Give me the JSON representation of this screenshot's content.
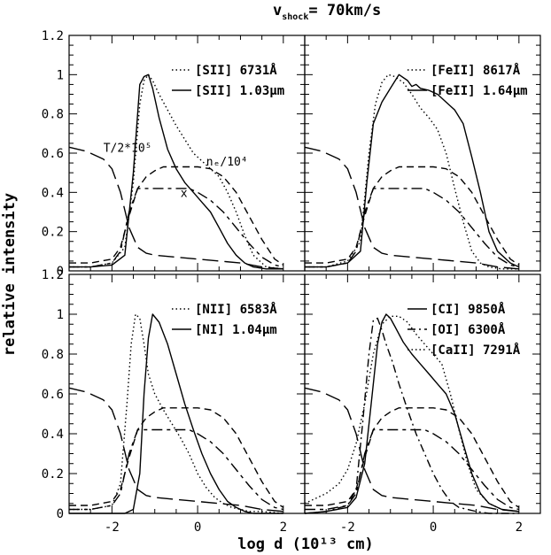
{
  "figure": {
    "title_main": "v",
    "title_sub": "shock",
    "title_rest": "= 70km/s",
    "xlabel": "log d (10¹³ cm)",
    "ylabel": "relative intensity",
    "xlim": [
      -3.0,
      2.5
    ],
    "ylim": [
      0.0,
      1.2
    ],
    "x_ticks": [
      -2,
      0,
      2
    ],
    "y_ticks": [
      0,
      0.2,
      0.4,
      0.6,
      0.8,
      1,
      1.2
    ]
  },
  "chart_data": [
    {
      "type": "line",
      "panel": "top-left",
      "xlim": [
        -3.0,
        2.5
      ],
      "ylim": [
        0.0,
        1.2
      ],
      "legend": [
        {
          "style": "dotted",
          "label": "[SII] 6731Å"
        },
        {
          "style": "solid",
          "label": "[SII] 1.03μm"
        }
      ],
      "annotations": [
        {
          "text": "T/2*10⁵",
          "x": -2.2,
          "y": 0.63
        },
        {
          "text": "nₑ/10⁴",
          "x": 0.2,
          "y": 0.56
        },
        {
          "text": "x",
          "x": -0.4,
          "y": 0.4
        }
      ],
      "series": [
        {
          "style": "dotted",
          "x": [
            -3.0,
            -2.5,
            -2.0,
            -1.7,
            -1.5,
            -1.35,
            -1.25,
            -1.15,
            -1.05,
            -0.9,
            -0.7,
            -0.5,
            -0.3,
            -0.1,
            0.1,
            0.3,
            0.5,
            0.7,
            0.9,
            1.1,
            1.3,
            1.6,
            2.0
          ],
          "y": [
            0.02,
            0.02,
            0.04,
            0.12,
            0.45,
            0.85,
            0.97,
            1.0,
            0.97,
            0.9,
            0.82,
            0.74,
            0.67,
            0.6,
            0.56,
            0.52,
            0.48,
            0.4,
            0.3,
            0.18,
            0.08,
            0.02,
            0.01
          ]
        },
        {
          "style": "solid",
          "x": [
            -3.0,
            -2.5,
            -2.0,
            -1.7,
            -1.5,
            -1.35,
            -1.25,
            -1.15,
            -1.05,
            -0.9,
            -0.7,
            -0.5,
            -0.3,
            -0.1,
            0.1,
            0.3,
            0.5,
            0.7,
            0.9,
            1.1,
            1.3,
            1.6,
            2.0
          ],
          "y": [
            0.02,
            0.02,
            0.03,
            0.08,
            0.5,
            0.95,
            0.99,
            1.0,
            0.93,
            0.78,
            0.62,
            0.52,
            0.45,
            0.4,
            0.35,
            0.3,
            0.22,
            0.14,
            0.08,
            0.04,
            0.02,
            0.01,
            0.01
          ]
        },
        {
          "style": "long-dash",
          "x": [
            -3.0,
            -2.6,
            -2.2,
            -2.0,
            -1.8,
            -1.6,
            -1.4,
            -1.2,
            -1.0,
            -0.5,
            0.0,
            0.5,
            1.0,
            1.5,
            2.0
          ],
          "y": [
            0.63,
            0.61,
            0.57,
            0.52,
            0.4,
            0.22,
            0.12,
            0.09,
            0.08,
            0.07,
            0.06,
            0.05,
            0.04,
            0.02,
            0.01
          ]
        },
        {
          "style": "short-dash",
          "x": [
            -3.0,
            -2.5,
            -2.0,
            -1.8,
            -1.6,
            -1.4,
            -1.2,
            -1.0,
            -0.8,
            -0.5,
            0.0,
            0.3,
            0.6,
            0.9,
            1.2,
            1.5,
            1.8,
            2.0
          ],
          "y": [
            0.04,
            0.04,
            0.06,
            0.12,
            0.28,
            0.42,
            0.48,
            0.51,
            0.53,
            0.53,
            0.53,
            0.52,
            0.48,
            0.4,
            0.28,
            0.16,
            0.06,
            0.03
          ]
        },
        {
          "style": "dash-short",
          "x": [
            -3.0,
            -2.5,
            -2.0,
            -1.8,
            -1.6,
            -1.4,
            -1.2,
            -1.0,
            -0.5,
            -0.2,
            0.0,
            0.3,
            0.6,
            0.9,
            1.2,
            1.5,
            1.8,
            2.0
          ],
          "y": [
            0.02,
            0.02,
            0.04,
            0.1,
            0.3,
            0.42,
            0.42,
            0.42,
            0.42,
            0.42,
            0.4,
            0.36,
            0.3,
            0.22,
            0.14,
            0.07,
            0.03,
            0.02
          ]
        }
      ]
    },
    {
      "type": "line",
      "panel": "top-right",
      "xlim": [
        -3.0,
        2.5
      ],
      "ylim": [
        0.0,
        1.2
      ],
      "legend": [
        {
          "style": "dotted",
          "label": "[FeII] 8617Å"
        },
        {
          "style": "solid",
          "label": "[FeII] 1.64μm"
        }
      ],
      "series": [
        {
          "style": "dotted",
          "x": [
            -3.0,
            -2.5,
            -2.0,
            -1.7,
            -1.5,
            -1.35,
            -1.2,
            -1.05,
            -0.9,
            -0.7,
            -0.5,
            -0.3,
            -0.1,
            0.1,
            0.3,
            0.5,
            0.7,
            0.9,
            1.1,
            1.3,
            1.6,
            2.0
          ],
          "y": [
            0.02,
            0.02,
            0.05,
            0.15,
            0.6,
            0.85,
            0.96,
            1.0,
            0.99,
            0.96,
            0.9,
            0.83,
            0.78,
            0.72,
            0.6,
            0.42,
            0.25,
            0.1,
            0.04,
            0.02,
            0.01,
            0.01
          ]
        },
        {
          "style": "solid",
          "x": [
            -3.0,
            -2.5,
            -2.0,
            -1.7,
            -1.55,
            -1.4,
            -1.2,
            -1.0,
            -0.8,
            -0.6,
            -0.5,
            -0.4,
            -0.3,
            -0.1,
            0.1,
            0.3,
            0.5,
            0.7,
            0.9,
            1.1,
            1.3,
            1.5,
            1.8,
            2.0
          ],
          "y": [
            0.02,
            0.02,
            0.04,
            0.1,
            0.45,
            0.75,
            0.86,
            0.93,
            1.0,
            0.97,
            0.94,
            0.95,
            0.93,
            0.92,
            0.9,
            0.86,
            0.82,
            0.75,
            0.58,
            0.4,
            0.2,
            0.1,
            0.04,
            0.02
          ]
        },
        {
          "style": "long-dash",
          "x": [
            -3.0,
            -2.6,
            -2.2,
            -2.0,
            -1.8,
            -1.6,
            -1.4,
            -1.2,
            -1.0,
            -0.5,
            0.0,
            0.5,
            1.0,
            1.5,
            2.0
          ],
          "y": [
            0.63,
            0.61,
            0.57,
            0.52,
            0.4,
            0.22,
            0.12,
            0.09,
            0.08,
            0.07,
            0.06,
            0.05,
            0.04,
            0.02,
            0.01
          ]
        },
        {
          "style": "short-dash",
          "x": [
            -3.0,
            -2.5,
            -2.0,
            -1.8,
            -1.6,
            -1.4,
            -1.2,
            -1.0,
            -0.8,
            -0.5,
            0.0,
            0.3,
            0.6,
            0.9,
            1.2,
            1.5,
            1.8,
            2.0
          ],
          "y": [
            0.04,
            0.04,
            0.06,
            0.12,
            0.28,
            0.42,
            0.48,
            0.51,
            0.53,
            0.53,
            0.53,
            0.52,
            0.48,
            0.4,
            0.28,
            0.16,
            0.06,
            0.03
          ]
        },
        {
          "style": "dash-short",
          "x": [
            -3.0,
            -2.5,
            -2.0,
            -1.8,
            -1.6,
            -1.4,
            -1.2,
            -1.0,
            -0.5,
            -0.2,
            0.0,
            0.3,
            0.6,
            0.9,
            1.2,
            1.5,
            1.8,
            2.0
          ],
          "y": [
            0.02,
            0.02,
            0.04,
            0.1,
            0.3,
            0.42,
            0.42,
            0.42,
            0.42,
            0.42,
            0.4,
            0.36,
            0.3,
            0.22,
            0.14,
            0.07,
            0.03,
            0.02
          ]
        }
      ]
    },
    {
      "type": "line",
      "panel": "bottom-left",
      "xlim": [
        -3.0,
        2.5
      ],
      "ylim": [
        0.0,
        1.2
      ],
      "legend": [
        {
          "style": "dotted",
          "label": "[NII] 6583Å"
        },
        {
          "style": "solid",
          "label": "[NI] 1.04μm"
        }
      ],
      "series": [
        {
          "style": "dotted",
          "x": [
            -3.0,
            -2.5,
            -2.0,
            -1.8,
            -1.65,
            -1.55,
            -1.45,
            -1.35,
            -1.25,
            -1.15,
            -1.0,
            -0.8,
            -0.6,
            -0.4,
            -0.2,
            0.0,
            0.2,
            0.4,
            0.6,
            0.8,
            1.0,
            1.2,
            1.5,
            2.0
          ],
          "y": [
            0.02,
            0.02,
            0.04,
            0.15,
            0.55,
            0.85,
            1.0,
            0.98,
            0.85,
            0.7,
            0.6,
            0.52,
            0.45,
            0.38,
            0.3,
            0.2,
            0.13,
            0.08,
            0.05,
            0.03,
            0.02,
            0.01,
            0.01,
            0.0
          ]
        },
        {
          "style": "solid",
          "x": [
            -3.0,
            -2.5,
            -2.0,
            -1.7,
            -1.5,
            -1.35,
            -1.25,
            -1.15,
            -1.05,
            -0.9,
            -0.7,
            -0.5,
            -0.3,
            -0.1,
            0.1,
            0.3,
            0.5,
            0.7,
            0.9,
            1.1,
            1.3,
            1.6,
            2.0
          ],
          "y": [
            0.0,
            0.0,
            0.0,
            0.0,
            0.02,
            0.2,
            0.6,
            0.88,
            1.0,
            0.96,
            0.85,
            0.7,
            0.55,
            0.42,
            0.3,
            0.2,
            0.12,
            0.06,
            0.03,
            0.01,
            0.0,
            0.0,
            0.0
          ]
        },
        {
          "style": "long-dash",
          "x": [
            -3.0,
            -2.6,
            -2.2,
            -2.0,
            -1.8,
            -1.6,
            -1.4,
            -1.2,
            -1.0,
            -0.5,
            0.0,
            0.5,
            1.0,
            1.5,
            2.0
          ],
          "y": [
            0.63,
            0.61,
            0.57,
            0.52,
            0.4,
            0.22,
            0.12,
            0.09,
            0.08,
            0.07,
            0.06,
            0.05,
            0.04,
            0.02,
            0.01
          ]
        },
        {
          "style": "short-dash",
          "x": [
            -3.0,
            -2.5,
            -2.0,
            -1.8,
            -1.6,
            -1.4,
            -1.2,
            -1.0,
            -0.8,
            -0.5,
            0.0,
            0.3,
            0.6,
            0.9,
            1.2,
            1.5,
            1.8,
            2.0
          ],
          "y": [
            0.04,
            0.04,
            0.06,
            0.12,
            0.28,
            0.42,
            0.48,
            0.51,
            0.53,
            0.53,
            0.53,
            0.52,
            0.48,
            0.4,
            0.28,
            0.16,
            0.06,
            0.03
          ]
        },
        {
          "style": "dash-short",
          "x": [
            -3.0,
            -2.5,
            -2.0,
            -1.8,
            -1.6,
            -1.4,
            -1.2,
            -1.0,
            -0.5,
            -0.2,
            0.0,
            0.3,
            0.6,
            0.9,
            1.2,
            1.5,
            1.8,
            2.0
          ],
          "y": [
            0.02,
            0.02,
            0.04,
            0.1,
            0.3,
            0.42,
            0.42,
            0.42,
            0.42,
            0.42,
            0.4,
            0.36,
            0.3,
            0.22,
            0.14,
            0.07,
            0.03,
            0.02
          ]
        }
      ]
    },
    {
      "type": "line",
      "panel": "bottom-right",
      "xlim": [
        -3.0,
        2.5
      ],
      "ylim": [
        0.0,
        1.2
      ],
      "legend": [
        {
          "style": "solid",
          "label": "[CI] 9850Å"
        },
        {
          "style": "dash-dot",
          "label": "[OI] 6300Å"
        },
        {
          "style": "dotted",
          "label": "[CaII] 7291Å"
        }
      ],
      "series": [
        {
          "style": "solid",
          "x": [
            -3.0,
            -2.5,
            -2.0,
            -1.8,
            -1.6,
            -1.45,
            -1.3,
            -1.2,
            -1.1,
            -1.0,
            -0.9,
            -0.7,
            -0.5,
            -0.3,
            -0.1,
            0.1,
            0.3,
            0.5,
            0.7,
            0.9,
            1.1,
            1.3,
            1.6,
            2.0
          ],
          "y": [
            0.0,
            0.01,
            0.03,
            0.08,
            0.25,
            0.55,
            0.85,
            0.96,
            1.0,
            0.98,
            0.94,
            0.86,
            0.8,
            0.75,
            0.7,
            0.65,
            0.6,
            0.5,
            0.35,
            0.2,
            0.1,
            0.05,
            0.02,
            0.01
          ]
        },
        {
          "style": "dash-dot",
          "x": [
            -3.0,
            -2.5,
            -2.0,
            -1.8,
            -1.65,
            -1.5,
            -1.4,
            -1.3,
            -1.2,
            -1.1,
            -0.95,
            -0.8,
            -0.6,
            -0.4,
            -0.2,
            0.0,
            0.2,
            0.4,
            0.6,
            0.8,
            1.0,
            1.3,
            1.6,
            2.0
          ],
          "y": [
            0.0,
            0.01,
            0.04,
            0.12,
            0.45,
            0.8,
            0.97,
            0.98,
            0.92,
            0.85,
            0.76,
            0.65,
            0.52,
            0.4,
            0.3,
            0.2,
            0.12,
            0.06,
            0.03,
            0.02,
            0.01,
            0.0,
            0.0,
            0.0
          ]
        },
        {
          "style": "dotted",
          "x": [
            -3.0,
            -2.5,
            -2.2,
            -2.0,
            -1.8,
            -1.6,
            -1.4,
            -1.2,
            -1.0,
            -0.8,
            -0.6,
            -0.4,
            -0.2,
            0.0,
            0.2,
            0.4,
            0.6,
            0.8,
            1.0,
            1.3,
            1.6,
            2.0
          ],
          "y": [
            0.05,
            0.1,
            0.15,
            0.22,
            0.35,
            0.55,
            0.8,
            0.95,
            0.99,
            0.99,
            0.96,
            0.9,
            0.85,
            0.8,
            0.75,
            0.6,
            0.42,
            0.25,
            0.12,
            0.05,
            0.02,
            0.01
          ]
        },
        {
          "style": "long-dash",
          "x": [
            -3.0,
            -2.6,
            -2.2,
            -2.0,
            -1.8,
            -1.6,
            -1.4,
            -1.2,
            -1.0,
            -0.5,
            0.0,
            0.5,
            1.0,
            1.5,
            2.0
          ],
          "y": [
            0.63,
            0.61,
            0.57,
            0.52,
            0.4,
            0.22,
            0.12,
            0.09,
            0.08,
            0.07,
            0.06,
            0.05,
            0.04,
            0.02,
            0.01
          ]
        },
        {
          "style": "short-dash",
          "x": [
            -3.0,
            -2.5,
            -2.0,
            -1.8,
            -1.6,
            -1.4,
            -1.2,
            -1.0,
            -0.8,
            -0.5,
            0.0,
            0.3,
            0.6,
            0.9,
            1.2,
            1.5,
            1.8,
            2.0
          ],
          "y": [
            0.04,
            0.04,
            0.06,
            0.12,
            0.28,
            0.42,
            0.48,
            0.51,
            0.53,
            0.53,
            0.53,
            0.52,
            0.48,
            0.4,
            0.28,
            0.16,
            0.06,
            0.03
          ]
        },
        {
          "style": "dash-short",
          "x": [
            -3.0,
            -2.5,
            -2.0,
            -1.8,
            -1.6,
            -1.4,
            -1.2,
            -1.0,
            -0.5,
            -0.2,
            0.0,
            0.3,
            0.6,
            0.9,
            1.2,
            1.5,
            1.8,
            2.0
          ],
          "y": [
            0.02,
            0.02,
            0.04,
            0.1,
            0.3,
            0.42,
            0.42,
            0.42,
            0.42,
            0.42,
            0.4,
            0.36,
            0.3,
            0.22,
            0.14,
            0.07,
            0.03,
            0.02
          ]
        }
      ]
    }
  ]
}
